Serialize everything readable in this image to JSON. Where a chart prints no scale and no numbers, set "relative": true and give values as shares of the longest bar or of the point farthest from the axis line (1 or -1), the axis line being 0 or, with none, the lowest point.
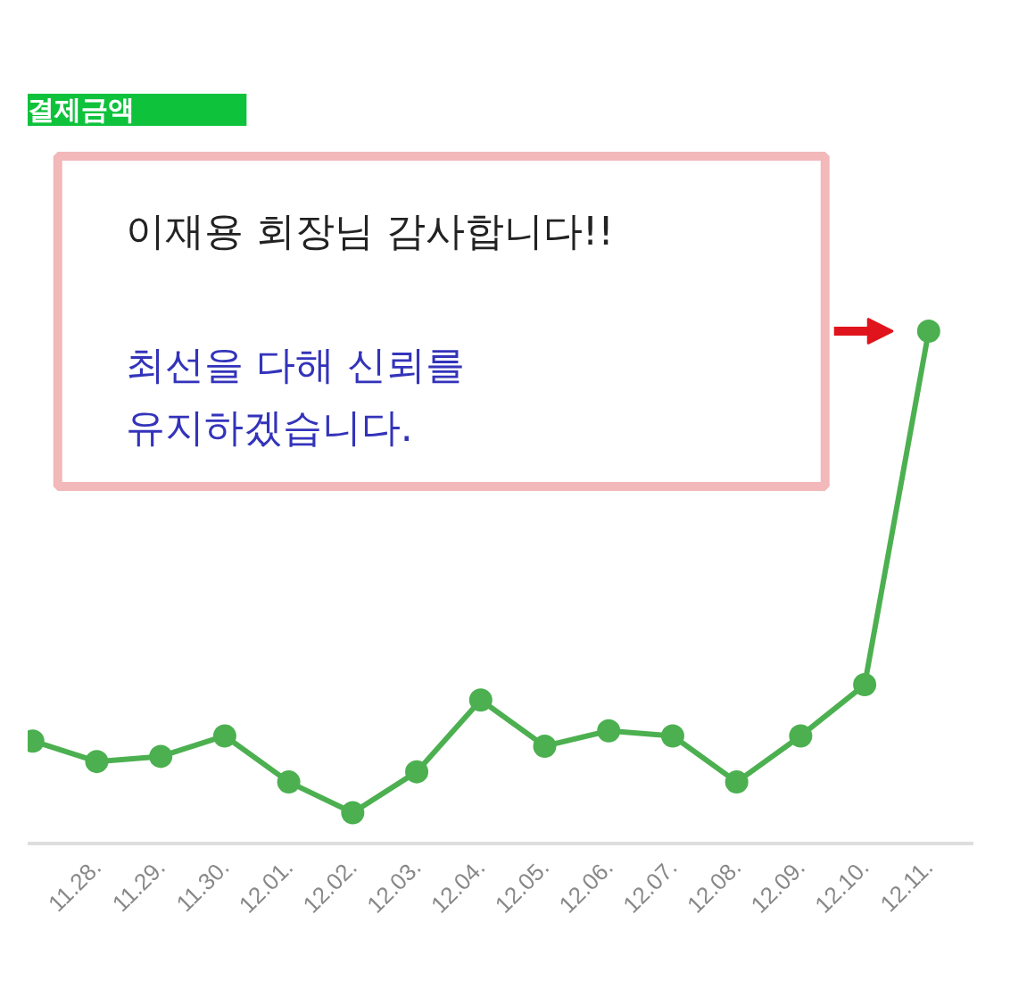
{
  "chart_data": {
    "type": "line",
    "title": "결제금액",
    "relative": true,
    "marker": "circle",
    "color": "#4cb050",
    "categories": [
      null,
      "11.28.",
      "11.29.",
      "11.30.",
      "12.01.",
      "12.02.",
      "12.03.",
      "12.04.",
      "12.05.",
      "12.06.",
      "12.07.",
      "12.08.",
      "12.09.",
      "12.10.",
      "12.11."
    ],
    "values": [
      0.2,
      0.16,
      0.17,
      0.21,
      0.12,
      0.06,
      0.14,
      0.28,
      0.19,
      0.22,
      0.21,
      0.12,
      0.21,
      0.31,
      1
    ],
    "annotations": [
      "이재용 회장님 감사합니다!!",
      "최선을 다해 신뢰를\n유지하겠습니다."
    ]
  }
}
